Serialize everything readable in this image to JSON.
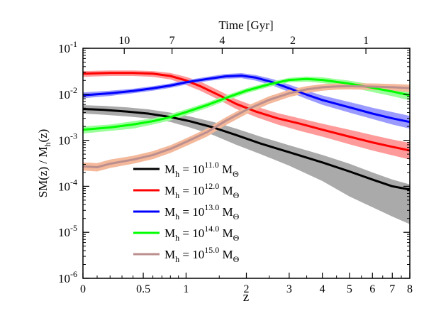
{
  "chart_data": {
    "type": "line",
    "title": "",
    "xlabel": "z",
    "ylabel_main": "SM(z) / M",
    "ylabel_sub": "h",
    "ylabel_tail": "(z)",
    "top_axis_label": "Time [Gyr]",
    "x_scale": "log(1+z)",
    "y_scale": "log",
    "xlim": [
      0,
      8
    ],
    "ylim": [
      1e-06,
      0.1
    ],
    "x_ticks": [
      {
        "value": 0,
        "label": "0"
      },
      {
        "value": 0.5,
        "label": "0.5"
      },
      {
        "value": 1,
        "label": "1"
      },
      {
        "value": 2,
        "label": "2"
      },
      {
        "value": 3,
        "label": "3"
      },
      {
        "value": 4,
        "label": "4"
      },
      {
        "value": 5,
        "label": "5"
      },
      {
        "value": 6,
        "label": "6"
      },
      {
        "value": 7,
        "label": "7"
      },
      {
        "value": 8,
        "label": "8"
      }
    ],
    "top_ticks": [
      {
        "z": 0.32,
        "label": "10"
      },
      {
        "z": 0.82,
        "label": "7"
      },
      {
        "z": 1.55,
        "label": "4"
      },
      {
        "z": 3.1,
        "label": "2"
      },
      {
        "z": 5.7,
        "label": "1"
      }
    ],
    "y_ticks": [
      {
        "value": 1e-06,
        "base": "10",
        "exp": "-6"
      },
      {
        "value": 1e-05,
        "base": "10",
        "exp": "-5"
      },
      {
        "value": 0.0001,
        "base": "10",
        "exp": "-4"
      },
      {
        "value": 0.001,
        "base": "10",
        "exp": "-3"
      },
      {
        "value": 0.01,
        "base": "10",
        "exp": "-2"
      },
      {
        "value": 0.1,
        "base": "10",
        "exp": "-1"
      }
    ],
    "legend_placement": "bottom-center",
    "series": [
      {
        "name": "M_h = 10^11.0 M_Θ",
        "legend": {
          "pre": "M",
          "sub": "h",
          "mid": " = 10",
          "sup": "11.0",
          "post": " M",
          "sub2": "Θ"
        },
        "color": "#000000",
        "band_color": "#aaaaaa",
        "x": [
          0,
          0.15,
          0.35,
          0.55,
          0.8,
          1.05,
          1.4,
          1.8,
          2.3,
          3.0,
          4.0,
          5.0,
          6.0,
          7.0,
          8.0
        ],
        "y": [
          0.0048,
          0.0046,
          0.0042,
          0.0038,
          0.0032,
          0.0026,
          0.0019,
          0.0013,
          0.00085,
          0.00055,
          0.00033,
          0.00021,
          0.00014,
          0.0001,
          8.5e-05
        ],
        "y_low": [
          0.0038,
          0.0036,
          0.0033,
          0.003,
          0.0025,
          0.0019,
          0.0013,
          0.0008,
          0.0005,
          0.00028,
          0.00013,
          6e-05,
          3.5e-05,
          2.2e-05,
          1.5e-05
        ],
        "y_high": [
          0.0058,
          0.0056,
          0.0052,
          0.0047,
          0.004,
          0.0033,
          0.0025,
          0.0018,
          0.0012,
          0.00078,
          0.00048,
          0.00031,
          0.0002,
          0.00014,
          0.00011
        ]
      },
      {
        "name": "M_h = 10^12.0 M_Θ",
        "legend": {
          "pre": "M",
          "sub": "h",
          "mid": " = 10",
          "sup": "12.0",
          "post": " M",
          "sub2": "Θ"
        },
        "color": "#ff0000",
        "band_color": "#ff9a9a",
        "x": [
          0,
          0.2,
          0.4,
          0.6,
          0.8,
          1.0,
          1.2,
          1.5,
          1.8,
          2.2,
          2.7,
          3.3,
          4.0,
          5.0,
          6.0,
          7.0,
          8.0
        ],
        "y": [
          0.028,
          0.029,
          0.029,
          0.028,
          0.025,
          0.02,
          0.015,
          0.0095,
          0.0062,
          0.0042,
          0.003,
          0.0023,
          0.0017,
          0.0012,
          0.0009,
          0.00072,
          0.0006
        ],
        "y_low": [
          0.024,
          0.025,
          0.025,
          0.024,
          0.021,
          0.016,
          0.012,
          0.0075,
          0.0048,
          0.0032,
          0.0022,
          0.0016,
          0.0012,
          0.00082,
          0.0006,
          0.00047,
          0.00038
        ],
        "y_high": [
          0.032,
          0.033,
          0.033,
          0.032,
          0.029,
          0.024,
          0.019,
          0.012,
          0.0078,
          0.0054,
          0.0039,
          0.003,
          0.0023,
          0.0017,
          0.0013,
          0.00104,
          0.00088
        ]
      },
      {
        "name": "M_h = 10^13.0 M_Θ",
        "legend": {
          "pre": "M",
          "sub": "h",
          "mid": " = 10",
          "sup": "13.0",
          "post": " M",
          "sub2": "Θ"
        },
        "color": "#0000ff",
        "band_color": "#9a9aff",
        "x": [
          0,
          0.2,
          0.4,
          0.6,
          0.8,
          1.0,
          1.3,
          1.6,
          1.9,
          2.2,
          2.6,
          3.0,
          3.5,
          4.0,
          5.0,
          6.0,
          7.0,
          8.0
        ],
        "y": [
          0.0095,
          0.0105,
          0.0118,
          0.0135,
          0.0155,
          0.0182,
          0.0215,
          0.0245,
          0.0255,
          0.023,
          0.018,
          0.0135,
          0.0098,
          0.0075,
          0.0052,
          0.0038,
          0.003,
          0.0025
        ],
        "y_low": [
          0.0082,
          0.0092,
          0.0105,
          0.012,
          0.0138,
          0.0162,
          0.0192,
          0.0218,
          0.0224,
          0.0198,
          0.0152,
          0.0112,
          0.0079,
          0.0059,
          0.004,
          0.0029,
          0.0022,
          0.0018
        ],
        "y_high": [
          0.011,
          0.012,
          0.0132,
          0.015,
          0.0172,
          0.0202,
          0.024,
          0.0275,
          0.0288,
          0.0262,
          0.0212,
          0.0162,
          0.012,
          0.0094,
          0.0068,
          0.0051,
          0.0041,
          0.0034
        ]
      },
      {
        "name": "M_h = 10^14.0 M_Θ",
        "legend": {
          "pre": "M",
          "sub": "h",
          "mid": " = 10",
          "sup": "14.0",
          "post": " M",
          "sub2": "Θ"
        },
        "color": "#00ff00",
        "band_color": "#9aff9a",
        "x": [
          0,
          0.2,
          0.4,
          0.6,
          0.8,
          1.0,
          1.3,
          1.6,
          2.0,
          2.5,
          3.0,
          3.5,
          4.0,
          5.0,
          6.0,
          7.0,
          8.0
        ],
        "y": [
          0.0017,
          0.0019,
          0.0022,
          0.0026,
          0.0032,
          0.0041,
          0.0058,
          0.0082,
          0.012,
          0.0165,
          0.0205,
          0.0215,
          0.0205,
          0.017,
          0.0138,
          0.0115,
          0.0095
        ],
        "y_low": [
          0.0014,
          0.0016,
          0.0018,
          0.0022,
          0.0027,
          0.0035,
          0.005,
          0.0071,
          0.0105,
          0.0145,
          0.0182,
          0.0188,
          0.0176,
          0.0142,
          0.0112,
          0.0091,
          0.0074
        ],
        "y_high": [
          0.002,
          0.0022,
          0.0026,
          0.003,
          0.0037,
          0.0047,
          0.0066,
          0.0093,
          0.0135,
          0.0185,
          0.0228,
          0.0242,
          0.0234,
          0.0198,
          0.0164,
          0.0139,
          0.0118
        ]
      },
      {
        "name": "M_h = 10^15.0 M_Θ",
        "legend": {
          "pre": "M",
          "sub": "h",
          "mid": " = 10",
          "sup": "15.0",
          "post": " M",
          "sub2": "Θ"
        },
        "color": "#bc8f8f",
        "band_color": "#f4b89a",
        "x": [
          0,
          0.1,
          0.2,
          0.4,
          0.6,
          0.8,
          1.0,
          1.3,
          1.6,
          2.0,
          2.5,
          3.0,
          3.5,
          4.0,
          4.5,
          5.0,
          6.0,
          7.0,
          8.0
        ],
        "y": [
          0.00027,
          0.00026,
          0.00031,
          0.00038,
          0.00048,
          0.00065,
          0.00092,
          0.0015,
          0.0026,
          0.0046,
          0.0076,
          0.0105,
          0.0128,
          0.0142,
          0.0148,
          0.015,
          0.0147,
          0.0142,
          0.0136
        ],
        "y_low": [
          0.00022,
          0.00021,
          0.00025,
          0.00031,
          0.00039,
          0.00053,
          0.00075,
          0.0012,
          0.0021,
          0.0037,
          0.0062,
          0.0087,
          0.0107,
          0.012,
          0.0126,
          0.0128,
          0.0124,
          0.0118,
          0.0112
        ],
        "y_high": [
          0.00033,
          0.00032,
          0.00038,
          0.00046,
          0.00058,
          0.00078,
          0.0011,
          0.0018,
          0.0031,
          0.0055,
          0.0091,
          0.0125,
          0.015,
          0.0166,
          0.0172,
          0.0174,
          0.0172,
          0.0168,
          0.0162
        ]
      }
    ]
  }
}
